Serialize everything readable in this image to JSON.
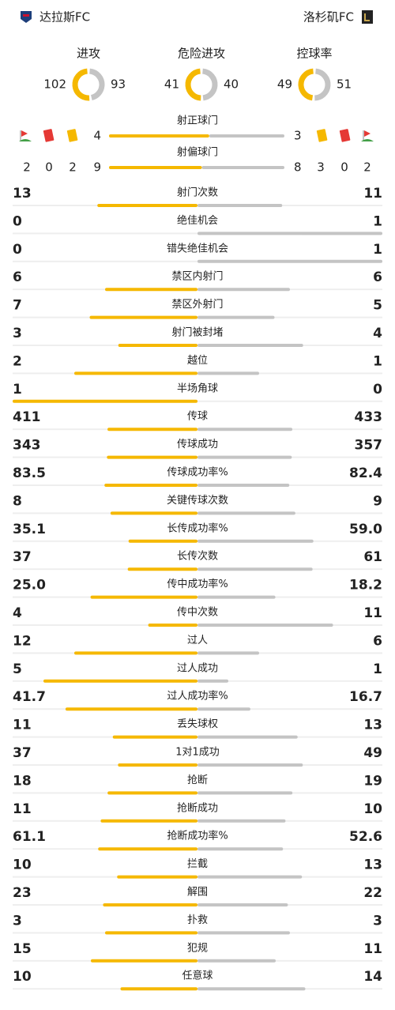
{
  "header": {
    "home": "达拉斯FC",
    "away": "洛杉矶FC"
  },
  "rings": [
    {
      "label": "进攻",
      "home": 102,
      "away": 93
    },
    {
      "label": "危险进攻",
      "home": 41,
      "away": 40
    },
    {
      "label": "控球率",
      "home": 49,
      "away": 51
    }
  ],
  "shots": [
    {
      "label": "射正球门",
      "home": 4,
      "away": 3
    },
    {
      "label": "射偏球门",
      "home": 9,
      "away": 8
    }
  ],
  "cards": {
    "home": {
      "corners": 2,
      "red": 0,
      "yellow": 2
    },
    "away": {
      "yellow": 3,
      "red": 0,
      "corners": 2
    }
  },
  "stats": [
    {
      "label": "射门次数",
      "home": 13,
      "away": 11
    },
    {
      "label": "绝佳机会",
      "home": 0,
      "away": 1
    },
    {
      "label": "错失绝佳机会",
      "home": 0,
      "away": 1
    },
    {
      "label": "禁区内射门",
      "home": 6,
      "away": 6
    },
    {
      "label": "禁区外射门",
      "home": 7,
      "away": 5
    },
    {
      "label": "射门被封堵",
      "home": 3,
      "away": 4
    },
    {
      "label": "越位",
      "home": 2,
      "away": 1
    },
    {
      "label": "半场角球",
      "home": 1,
      "away": 0
    },
    {
      "label": "传球",
      "home": 411,
      "away": 433
    },
    {
      "label": "传球成功",
      "home": 343,
      "away": 357
    },
    {
      "label": "传球成功率%",
      "home": 83.5,
      "away": 82.4
    },
    {
      "label": "关键传球次数",
      "home": 8,
      "away": 9
    },
    {
      "label": "长传成功率%",
      "home": 35.1,
      "away": 59.0,
      "away_label": "59.0"
    },
    {
      "label": "长传次数",
      "home": 37,
      "away": 61
    },
    {
      "label": "传中成功率%",
      "home": 25.0,
      "home_label": "25.0",
      "away": 18.2
    },
    {
      "label": "传中次数",
      "home": 4,
      "away": 11
    },
    {
      "label": "过人",
      "home": 12,
      "away": 6
    },
    {
      "label": "过人成功",
      "home": 5,
      "away": 1
    },
    {
      "label": "过人成功率%",
      "home": 41.7,
      "away": 16.7
    },
    {
      "label": "丢失球权",
      "home": 11,
      "away": 13
    },
    {
      "label": "1对1成功",
      "home": 37,
      "away": 49
    },
    {
      "label": "抢断",
      "home": 18,
      "away": 19
    },
    {
      "label": "抢断成功",
      "home": 11,
      "away": 10
    },
    {
      "label": "抢断成功率%",
      "home": 61.1,
      "away": 52.6
    },
    {
      "label": "拦截",
      "home": 10,
      "away": 13
    },
    {
      "label": "解围",
      "home": 23,
      "away": 22
    },
    {
      "label": "扑救",
      "home": 3,
      "away": 3
    },
    {
      "label": "犯规",
      "home": 15,
      "away": 11
    },
    {
      "label": "任意球",
      "home": 10,
      "away": 14
    }
  ]
}
